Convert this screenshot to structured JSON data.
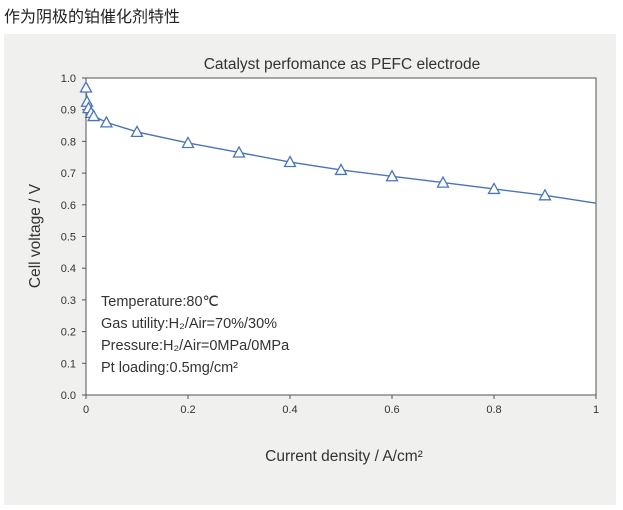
{
  "heading": "作为阴极的铂催化剂特性",
  "chart_data": {
    "type": "line",
    "title": "Catalyst perfomance as PEFC electrode",
    "xlabel": "Current density / A/cm²",
    "ylabel": "Cell voltage / V",
    "xlim": [
      0,
      1
    ],
    "ylim": [
      0,
      1.0
    ],
    "x_ticks": [
      "0",
      "0.2",
      "0.4",
      "0.6",
      "0.8",
      "1"
    ],
    "y_ticks": [
      "0.0",
      "0.1",
      "0.2",
      "0.3",
      "0.4",
      "0.5",
      "0.6",
      "0.7",
      "0.8",
      "0.9",
      "1.0"
    ],
    "grid": false,
    "series": [
      {
        "marker": "triangle",
        "color": "#4a74b8",
        "x": [
          0.0,
          0.002,
          0.005,
          0.01,
          0.015,
          0.04,
          0.1,
          0.2,
          0.3,
          0.4,
          0.5,
          0.6,
          0.7,
          0.8,
          0.9
        ],
        "y": [
          0.97,
          0.925,
          0.905,
          0.89,
          0.88,
          0.86,
          0.83,
          0.795,
          0.765,
          0.735,
          0.71,
          0.69,
          0.67,
          0.65,
          0.63
        ]
      }
    ],
    "curve_end": {
      "x": 1.0,
      "y": 0.605
    },
    "annotations": [
      "Temperature:80℃",
      "Gas utility:H₂/Air=70%/30%",
      "Pressure:H₂/Air=0MPa/0MPa",
      "Pt loading:0.5mg/cm²"
    ]
  }
}
